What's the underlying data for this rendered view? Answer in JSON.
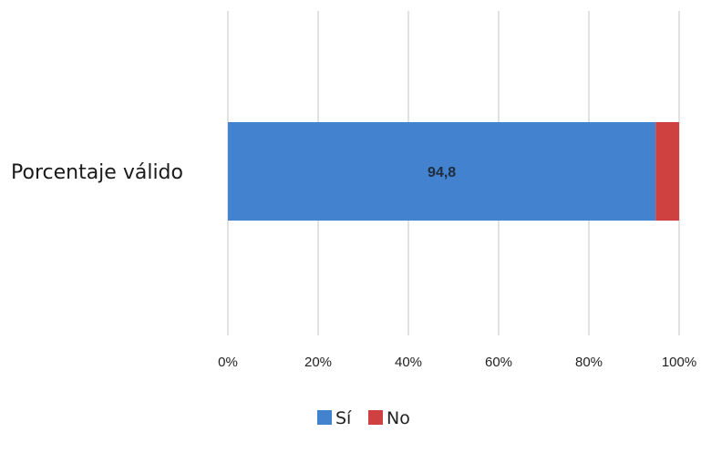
{
  "chart_data": {
    "type": "bar",
    "orientation": "horizontal",
    "stacked": true,
    "categories": [
      "Porcentaje válido"
    ],
    "series": [
      {
        "name": "Sí",
        "values": [
          94.8
        ],
        "color": "#4282cf",
        "data_label": "94,8"
      },
      {
        "name": "No",
        "values": [
          5.2
        ],
        "color": "#cf4040"
      }
    ],
    "xlim": [
      0,
      100
    ],
    "x_ticks": [
      "0%",
      "20%",
      "40%",
      "60%",
      "80%",
      "100%"
    ],
    "grid": true,
    "legend_position": "bottom"
  }
}
